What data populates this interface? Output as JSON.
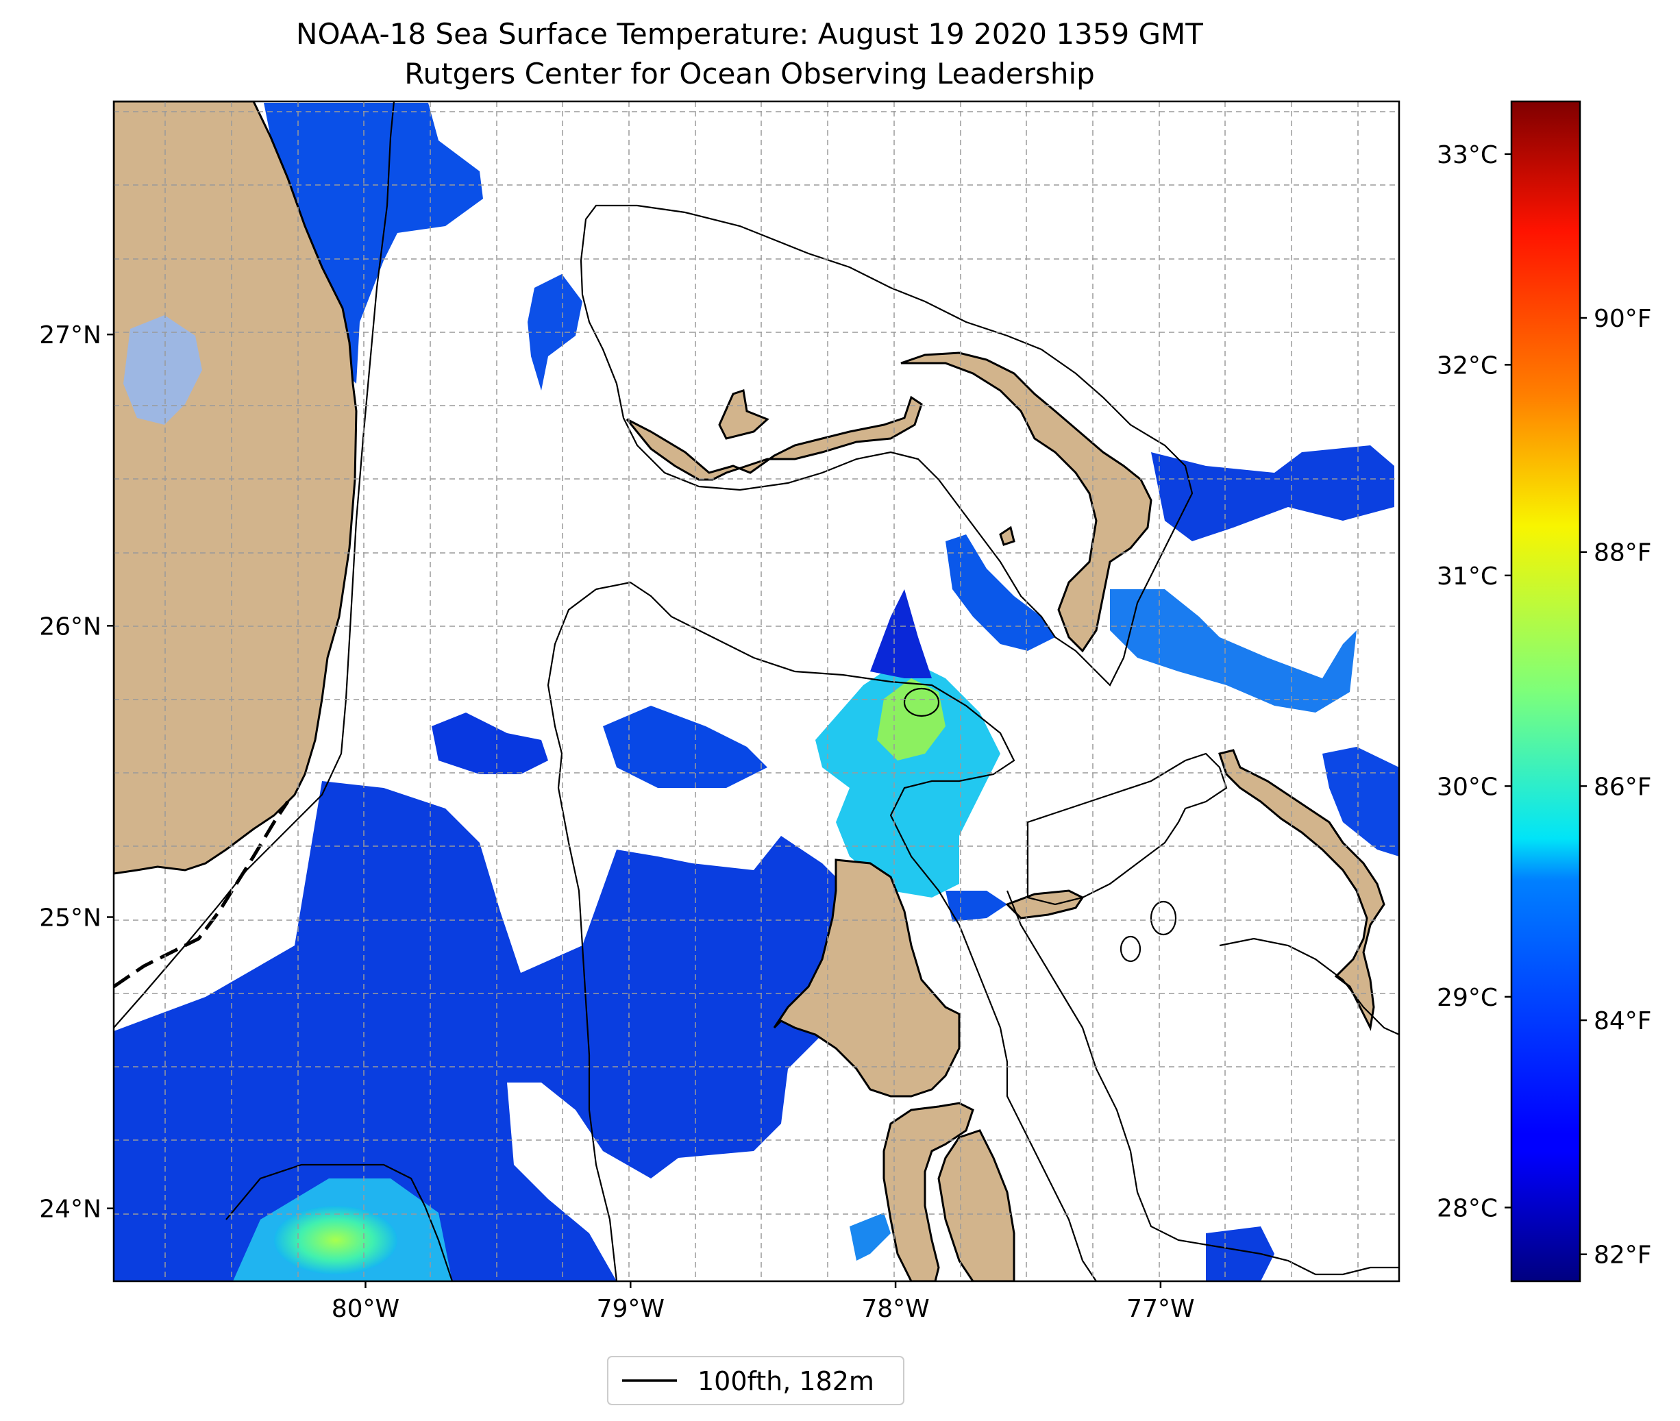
{
  "title": {
    "line1": "NOAA-18 Sea Surface Temperature: August 19 2020 1359 GMT",
    "line2": "Rutgers Center for Ocean Observing Leadership"
  },
  "map": {
    "lon_range": [
      -80.95,
      -76.1
    ],
    "lat_range": [
      23.75,
      27.8
    ],
    "lat_ticks": [
      {
        "value": 24,
        "label": "24°N"
      },
      {
        "value": 25,
        "label": "25°N"
      },
      {
        "value": 26,
        "label": "26°N"
      },
      {
        "value": 27,
        "label": "27°N"
      }
    ],
    "lon_ticks": [
      {
        "value": -80,
        "label": "80°W"
      },
      {
        "value": -79,
        "label": "79°W"
      },
      {
        "value": -78,
        "label": "78°W"
      },
      {
        "value": -77,
        "label": "77°W"
      }
    ],
    "grid": "dashed",
    "land_color": "#d2b48c",
    "lake_color": "#9db7e3"
  },
  "colorbar": {
    "celsius_range": [
      27.65,
      33.25
    ],
    "celsius_ticks": [
      {
        "value": 28,
        "label": "28°C"
      },
      {
        "value": 29,
        "label": "29°C"
      },
      {
        "value": 30,
        "label": "30°C"
      },
      {
        "value": 31,
        "label": "31°C"
      },
      {
        "value": 32,
        "label": "32°C"
      },
      {
        "value": 33,
        "label": "33°C"
      }
    ],
    "fahrenheit_ticks": [
      {
        "value": 82,
        "label": "82°F"
      },
      {
        "value": 84,
        "label": "84°F"
      },
      {
        "value": 86,
        "label": "86°F"
      },
      {
        "value": 88,
        "label": "88°F"
      },
      {
        "value": 90,
        "label": "90°F"
      }
    ],
    "colormap": "jet"
  },
  "legend": {
    "label": "100fth, 182m",
    "line_color": "#000000"
  }
}
